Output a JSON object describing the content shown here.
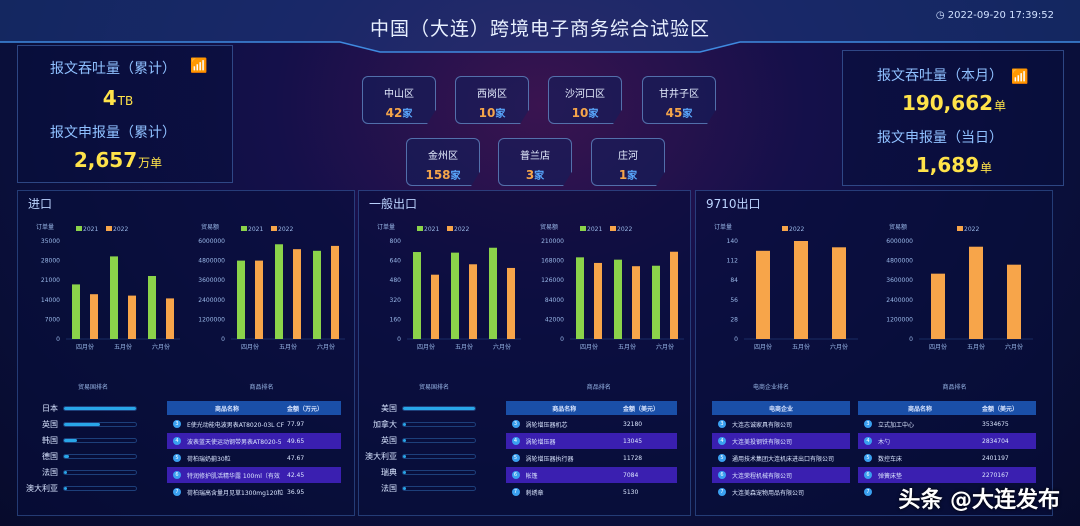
{
  "header": {
    "title": "中国（大连）跨境电子商务综合试验区",
    "datetime": "2022-09-20 17:39:52"
  },
  "left_stats": {
    "throughput_label": "报文吞吐量（累计）",
    "throughput_value": "4",
    "throughput_unit": "TB",
    "declare_label": "报文申报量（累计）",
    "declare_value": "2,657",
    "declare_unit": "万单"
  },
  "right_stats": {
    "throughput_label": "报文吞吐量（本月）",
    "throughput_value": "190,662",
    "throughput_unit": "单",
    "declare_label": "报文申报量（当日）",
    "declare_value": "1,689",
    "declare_unit": "单"
  },
  "districts": [
    {
      "name": "中山区",
      "count": "42",
      "unit": "家"
    },
    {
      "name": "西岗区",
      "count": "10",
      "unit": "家"
    },
    {
      "name": "沙河口区",
      "count": "10",
      "unit": "家"
    },
    {
      "name": "甘井子区",
      "count": "45",
      "unit": "家"
    },
    {
      "name": "金州区",
      "count": "158",
      "unit": "家"
    },
    {
      "name": "普兰店",
      "count": "3",
      "unit": "家"
    },
    {
      "name": "庄河",
      "count": "1",
      "unit": "家"
    }
  ],
  "colors": {
    "y2021": "#8bd34a",
    "y2022": "#f7a54a",
    "bar": "#29a6e8",
    "accent": "#ffe34a"
  },
  "sections": [
    {
      "title": "进口",
      "rank_title": "贸易国排名",
      "goods_title": "商品排名",
      "countries": [
        {
          "name": "日本",
          "share": 1.0
        },
        {
          "name": "英国",
          "share": 0.5
        },
        {
          "name": "韩国",
          "share": 0.18
        },
        {
          "name": "德国",
          "share": 0.07
        },
        {
          "name": "法国",
          "share": 0.03
        },
        {
          "name": "澳大利亚",
          "share": 0.03
        }
      ],
      "goods_header": {
        "name": "商品名称",
        "amount": "金额（万元）"
      },
      "goods": [
        {
          "rank": "3",
          "name": "E使光动能电波男表AT8020-03L CF",
          "amount": "77.97"
        },
        {
          "rank": "4",
          "name": "波表蓝天使运动钢带男表AT8020-5",
          "amount": "49.65"
        },
        {
          "rank": "5",
          "name": "荷柏瑞奶蓟30粒",
          "amount": "47.67"
        },
        {
          "rank": "6",
          "name": "特润修护肌活精华露 100ml（有效",
          "amount": "42.45"
        },
        {
          "rank": "7",
          "name": "荷柏瑞高含量月见草1300mg120粒",
          "amount": "36.95"
        }
      ]
    },
    {
      "title": "一般出口",
      "rank_title": "贸易国排名",
      "goods_title": "商品排名",
      "countries": [
        {
          "name": "美国",
          "share": 1.0
        },
        {
          "name": "加拿大",
          "share": 0.01
        },
        {
          "name": "英国",
          "share": 0.01
        },
        {
          "name": "澳大利亚",
          "share": 0.01
        },
        {
          "name": "瑞典",
          "share": 0.005
        },
        {
          "name": "法国",
          "share": 0.005
        }
      ],
      "goods_header": {
        "name": "商品名称",
        "amount": "金额（美元）"
      },
      "goods": [
        {
          "rank": "3",
          "name": "涡轮增压器机芯",
          "amount": "32180"
        },
        {
          "rank": "4",
          "name": "涡轮增压器",
          "amount": "13045"
        },
        {
          "rank": "5",
          "name": "涡轮增压器执行器",
          "amount": "11728"
        },
        {
          "rank": "6",
          "name": "帐篷",
          "amount": "7084"
        },
        {
          "rank": "7",
          "name": "刺绣章",
          "amount": "5130"
        }
      ]
    },
    {
      "title": "9710出口",
      "rank_title": "电商企业排名",
      "goods_title": "商品排名",
      "company_header": "电商企业",
      "companies": [
        {
          "rank": "3",
          "name": "大连志诚家具有限公司"
        },
        {
          "rank": "4",
          "name": "大连美投钢铁有限公司"
        },
        {
          "rank": "5",
          "name": "通用技术集团大连机床进出口有限公司"
        },
        {
          "rank": "6",
          "name": "大连荣程机械有限公司"
        },
        {
          "rank": "7",
          "name": "大连美森宠物用品有限公司"
        }
      ],
      "goods_header": {
        "name": "商品名称",
        "amount": "金额（美元）"
      },
      "goods": [
        {
          "rank": "3",
          "name": "立式加工中心",
          "amount": "3534675"
        },
        {
          "rank": "4",
          "name": "木勺",
          "amount": "2834704"
        },
        {
          "rank": "5",
          "name": "数控车床",
          "amount": "2401197"
        },
        {
          "rank": "6",
          "name": "弹簧床垫",
          "amount": "2270167"
        },
        {
          "rank": "7",
          "name": "",
          "amount": ""
        }
      ]
    }
  ],
  "chart_data": [
    {
      "type": "bar",
      "ylabel": "订单量",
      "categories": [
        "四月份",
        "五月份",
        "六月份"
      ],
      "ylim": [
        0,
        35000
      ],
      "yticks": [
        "0",
        "7000",
        "14000",
        "21000",
        "28000",
        "35000"
      ],
      "series": [
        {
          "name": "2021",
          "values": [
            19500,
            29500,
            22500
          ]
        },
        {
          "name": "2022",
          "values": [
            16000,
            15500,
            14500
          ]
        }
      ]
    },
    {
      "type": "bar",
      "ylabel": "贸易额",
      "categories": [
        "四月份",
        "五月份",
        "六月份"
      ],
      "ylim": [
        0,
        6000000
      ],
      "yticks": [
        "0",
        "1200000",
        "2400000",
        "3600000",
        "4800000",
        "6000000"
      ],
      "series": [
        {
          "name": "2021",
          "values": [
            4800000,
            5800000,
            5400000
          ]
        },
        {
          "name": "2022",
          "values": [
            4800000,
            5500000,
            5700000
          ]
        }
      ]
    },
    {
      "type": "bar",
      "ylabel": "订单量",
      "categories": [
        "四月份",
        "五月份",
        "六月份"
      ],
      "ylim": [
        0,
        800
      ],
      "yticks": [
        "0",
        "160",
        "320",
        "480",
        "640",
        "800"
      ],
      "series": [
        {
          "name": "2021",
          "values": [
            710,
            705,
            745
          ]
        },
        {
          "name": "2022",
          "values": [
            525,
            610,
            580
          ]
        }
      ]
    },
    {
      "type": "bar",
      "ylabel": "贸易额",
      "categories": [
        "四月份",
        "五月份",
        "六月份"
      ],
      "ylim": [
        0,
        210000
      ],
      "yticks": [
        "0",
        "42000",
        "84000",
        "126000",
        "168000",
        "210000"
      ],
      "series": [
        {
          "name": "2021",
          "values": [
            175000,
            170000,
            157000
          ]
        },
        {
          "name": "2022",
          "values": [
            163000,
            156000,
            187000
          ]
        }
      ]
    },
    {
      "type": "bar",
      "ylabel": "订单量",
      "categories": [
        "四月份",
        "五月份",
        "六月份"
      ],
      "ylim": [
        0,
        140
      ],
      "yticks": [
        "0",
        "28",
        "56",
        "84",
        "112",
        "140"
      ],
      "series": [
        {
          "name": "2022",
          "values": [
            126,
            140,
            131
          ]
        }
      ]
    },
    {
      "type": "bar",
      "ylabel": "贸易额",
      "categories": [
        "四月份",
        "五月份",
        "六月份"
      ],
      "ylim": [
        0,
        6000000
      ],
      "yticks": [
        "0",
        "1200000",
        "2400000",
        "3600000",
        "4800000",
        "6000000"
      ],
      "series": [
        {
          "name": "2022",
          "values": [
            4000000,
            5650000,
            4550000
          ]
        }
      ]
    }
  ],
  "watermark": "头条 @大连发布"
}
